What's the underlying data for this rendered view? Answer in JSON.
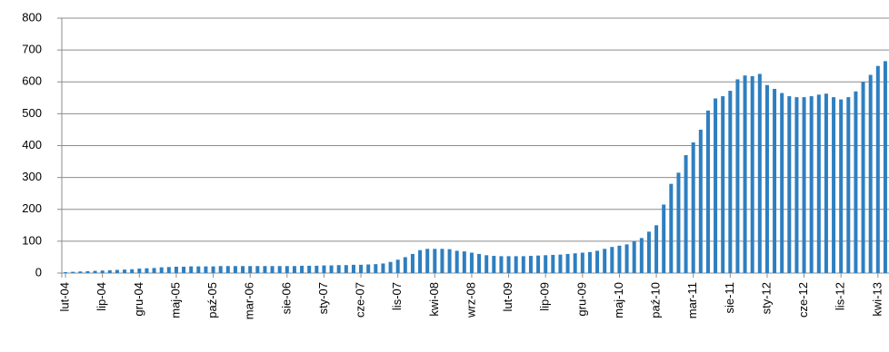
{
  "chart_data": {
    "type": "bar",
    "categories": [
      "lut-04",
      null,
      null,
      null,
      null,
      "lip-04",
      null,
      null,
      null,
      null,
      "gru-04",
      null,
      null,
      null,
      null,
      "maj-05",
      null,
      null,
      null,
      null,
      "paź-05",
      null,
      null,
      null,
      null,
      "mar-06",
      null,
      null,
      null,
      null,
      "sie-06",
      null,
      null,
      null,
      null,
      "sty-07",
      null,
      null,
      null,
      null,
      "cze-07",
      null,
      null,
      null,
      null,
      "lis-07",
      null,
      null,
      null,
      null,
      "kwi-08",
      null,
      null,
      null,
      null,
      "wrz-08",
      null,
      null,
      null,
      null,
      "lut-09",
      null,
      null,
      null,
      null,
      "lip-09",
      null,
      null,
      null,
      null,
      "gru-09",
      null,
      null,
      null,
      null,
      "maj-10",
      null,
      null,
      null,
      null,
      "paź-10",
      null,
      null,
      null,
      null,
      "mar-11",
      null,
      null,
      null,
      null,
      "sie-11",
      null,
      null,
      null,
      null,
      "sty-12",
      null,
      null,
      null,
      null,
      "cze-12",
      null,
      null,
      null,
      null,
      "lis-12",
      null,
      null,
      null,
      null,
      "kwi-13",
      null
    ],
    "values": [
      3,
      4,
      5,
      6,
      7,
      8,
      9,
      10,
      11,
      12,
      14,
      15,
      16,
      18,
      19,
      20,
      20,
      21,
      21,
      21,
      21,
      22,
      22,
      22,
      22,
      22,
      22,
      22,
      22,
      22,
      22,
      22,
      23,
      23,
      23,
      24,
      24,
      25,
      25,
      26,
      26,
      27,
      28,
      30,
      35,
      42,
      50,
      60,
      72,
      76,
      76,
      76,
      75,
      70,
      68,
      64,
      60,
      56,
      54,
      53,
      53,
      53,
      53,
      54,
      55,
      56,
      57,
      58,
      60,
      62,
      64,
      66,
      70,
      76,
      82,
      86,
      90,
      100,
      110,
      130,
      150,
      215,
      280,
      315,
      370,
      410,
      450,
      510,
      548,
      555,
      572,
      608,
      620,
      618,
      625,
      590,
      578,
      565,
      555,
      552,
      552,
      555,
      560,
      563,
      552,
      545,
      552,
      570,
      600,
      622,
      650,
      665
    ],
    "color": "#2e7fc0",
    "ylim": [
      0,
      800
    ],
    "yticks": [
      0,
      100,
      200,
      300,
      400,
      500,
      600,
      700,
      800
    ],
    "grid": true
  }
}
